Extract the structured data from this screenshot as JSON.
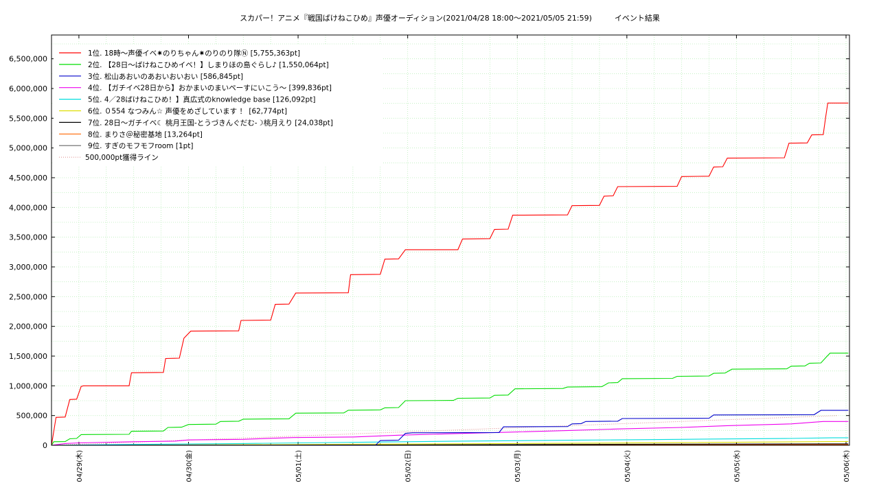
{
  "chart_data": {
    "type": "line",
    "title": "スカパー！アニメ『戦国ばけねこひめ』声優オーディション(2021/04/28 18:00〜2021/05/05 21:59)　　　イベント結果",
    "xlabel": "",
    "ylabel": "",
    "ylim": [
      0,
      6900000
    ],
    "yticks": [
      0,
      500000,
      1000000,
      1500000,
      2000000,
      2500000,
      3000000,
      3500000,
      4000000,
      4500000,
      5000000,
      5500000,
      6000000,
      6500000
    ],
    "ytick_labels": [
      "0",
      "500,000",
      "1,000,000",
      "1,500,000",
      "2,000,000",
      "2,500,000",
      "3,000,000",
      "3,500,000",
      "4,000,000",
      "4,500,000",
      "5,000,000",
      "5,500,000",
      "6,000,000",
      "6,500,000"
    ],
    "xlim": [
      "2021-04-28 18:00",
      "2021-05-06 00:45"
    ],
    "x_tick_labels": [
      "04/29(木)",
      "04/30(金)",
      "05/01(土)",
      "05/02(日)",
      "05/03(月)",
      "05/04(火)",
      "05/05(水)",
      "05/06(木)"
    ],
    "x_tick_dates": [
      "2021-04-29 00:00",
      "2021-04-30 00:00",
      "2021-05-01 00:00",
      "2021-05-02 00:00",
      "2021-05-03 00:00",
      "2021-05-04 00:00",
      "2021-05-05 00:00",
      "2021-05-06 00:00"
    ],
    "grid": true,
    "legend_position": "top-left",
    "series": [
      {
        "name": "1位. 18時〜声優イベ✷のりちゃん✷のりのり隊Ⓝ [5,755,363pt]",
        "color": "#ff0000",
        "points": [
          [
            "2021-04-28 18:00",
            0
          ],
          [
            "2021-04-28 19:00",
            470000
          ],
          [
            "2021-04-28 21:00",
            475000
          ],
          [
            "2021-04-28 22:00",
            770000
          ],
          [
            "2021-04-28 23:30",
            775000
          ],
          [
            "2021-04-29 00:30",
            990000
          ],
          [
            "2021-04-29 01:00",
            1000000
          ],
          [
            "2021-04-29 11:00",
            1000000
          ],
          [
            "2021-04-29 11:30",
            1220000
          ],
          [
            "2021-04-29 18:30",
            1225000
          ],
          [
            "2021-04-29 19:00",
            1460000
          ],
          [
            "2021-04-29 22:00",
            1465000
          ],
          [
            "2021-04-29 23:00",
            1800000
          ],
          [
            "2021-04-30 00:30",
            1920000
          ],
          [
            "2021-04-30 11:00",
            1925000
          ],
          [
            "2021-04-30 11:30",
            2100000
          ],
          [
            "2021-04-30 18:00",
            2105000
          ],
          [
            "2021-04-30 19:00",
            2370000
          ],
          [
            "2021-04-30 22:00",
            2375000
          ],
          [
            "2021-04-30 23:30",
            2560000
          ],
          [
            "2021-05-01 11:00",
            2565000
          ],
          [
            "2021-05-01 11:30",
            2870000
          ],
          [
            "2021-05-01 18:00",
            2875000
          ],
          [
            "2021-05-01 19:00",
            3130000
          ],
          [
            "2021-05-01 22:00",
            3135000
          ],
          [
            "2021-05-01 23:30",
            3290000
          ],
          [
            "2021-05-02 11:00",
            3290000
          ],
          [
            "2021-05-02 12:00",
            3470000
          ],
          [
            "2021-05-02 18:00",
            3475000
          ],
          [
            "2021-05-02 19:00",
            3630000
          ],
          [
            "2021-05-02 22:00",
            3635000
          ],
          [
            "2021-05-02 23:00",
            3870000
          ],
          [
            "2021-05-03 11:00",
            3875000
          ],
          [
            "2021-05-03 12:00",
            4030000
          ],
          [
            "2021-05-03 18:00",
            4035000
          ],
          [
            "2021-05-03 19:00",
            4190000
          ],
          [
            "2021-05-03 21:00",
            4195000
          ],
          [
            "2021-05-03 22:00",
            4350000
          ],
          [
            "2021-05-04 11:00",
            4355000
          ],
          [
            "2021-05-04 12:00",
            4520000
          ],
          [
            "2021-05-04 18:00",
            4525000
          ],
          [
            "2021-05-04 19:00",
            4680000
          ],
          [
            "2021-05-04 21:00",
            4685000
          ],
          [
            "2021-05-04 22:00",
            4830000
          ],
          [
            "2021-05-05 10:30",
            4835000
          ],
          [
            "2021-05-05 11:30",
            5080000
          ],
          [
            "2021-05-05 15:30",
            5085000
          ],
          [
            "2021-05-05 16:30",
            5220000
          ],
          [
            "2021-05-05 19:00",
            5225000
          ],
          [
            "2021-05-05 19:30",
            5500000
          ],
          [
            "2021-05-05 20:00",
            5755363
          ],
          [
            "2021-05-06 00:30",
            5755363
          ]
        ]
      },
      {
        "name": "2位. 【28日〜ばけねこひめイベ！】しまりほの島ぐらし♪ [1,550,064pt]",
        "color": "#00dd00",
        "points": [
          [
            "2021-04-28 18:00",
            0
          ],
          [
            "2021-04-28 18:30",
            60000
          ],
          [
            "2021-04-28 21:00",
            62000
          ],
          [
            "2021-04-28 22:00",
            110000
          ],
          [
            "2021-04-28 23:30",
            115000
          ],
          [
            "2021-04-29 00:30",
            180000
          ],
          [
            "2021-04-29 11:00",
            185000
          ],
          [
            "2021-04-29 11:30",
            235000
          ],
          [
            "2021-04-29 18:30",
            240000
          ],
          [
            "2021-04-29 19:30",
            300000
          ],
          [
            "2021-04-29 22:30",
            305000
          ],
          [
            "2021-04-30 00:00",
            350000
          ],
          [
            "2021-04-30 06:00",
            355000
          ],
          [
            "2021-04-30 07:00",
            400000
          ],
          [
            "2021-04-30 11:00",
            405000
          ],
          [
            "2021-04-30 12:00",
            440000
          ],
          [
            "2021-04-30 22:00",
            445000
          ],
          [
            "2021-04-30 23:30",
            540000
          ],
          [
            "2021-05-01 10:00",
            545000
          ],
          [
            "2021-05-01 11:00",
            590000
          ],
          [
            "2021-05-01 18:00",
            595000
          ],
          [
            "2021-05-01 19:00",
            630000
          ],
          [
            "2021-05-01 22:00",
            635000
          ],
          [
            "2021-05-01 23:30",
            750000
          ],
          [
            "2021-05-02 10:00",
            755000
          ],
          [
            "2021-05-02 11:00",
            790000
          ],
          [
            "2021-05-02 18:00",
            795000
          ],
          [
            "2021-05-02 19:00",
            840000
          ],
          [
            "2021-05-02 22:00",
            845000
          ],
          [
            "2021-05-02 23:30",
            950000
          ],
          [
            "2021-05-03 10:00",
            955000
          ],
          [
            "2021-05-03 11:00",
            980000
          ],
          [
            "2021-05-03 18:30",
            985000
          ],
          [
            "2021-05-03 20:00",
            1050000
          ],
          [
            "2021-05-03 22:00",
            1055000
          ],
          [
            "2021-05-03 23:00",
            1120000
          ],
          [
            "2021-05-04 10:00",
            1125000
          ],
          [
            "2021-05-04 11:00",
            1160000
          ],
          [
            "2021-05-04 18:00",
            1165000
          ],
          [
            "2021-05-04 19:00",
            1210000
          ],
          [
            "2021-05-04 21:30",
            1215000
          ],
          [
            "2021-05-04 23:00",
            1280000
          ],
          [
            "2021-05-05 11:00",
            1285000
          ],
          [
            "2021-05-05 12:00",
            1330000
          ],
          [
            "2021-05-05 15:00",
            1335000
          ],
          [
            "2021-05-05 16:00",
            1380000
          ],
          [
            "2021-05-05 18:30",
            1385000
          ],
          [
            "2021-05-05 19:30",
            1470000
          ],
          [
            "2021-05-05 20:30",
            1550064
          ],
          [
            "2021-05-06 00:30",
            1550064
          ]
        ]
      },
      {
        "name": "3位. 松山あおいのあおいおいおい [586,845pt]",
        "color": "#0000cc",
        "points": [
          [
            "2021-04-28 18:00",
            0
          ],
          [
            "2021-05-01 17:00",
            5000
          ],
          [
            "2021-05-01 18:00",
            80000
          ],
          [
            "2021-05-01 22:00",
            85000
          ],
          [
            "2021-05-01 23:30",
            200000
          ],
          [
            "2021-05-02 01:00",
            210000
          ],
          [
            "2021-05-02 20:00",
            215000
          ],
          [
            "2021-05-02 21:00",
            310000
          ],
          [
            "2021-05-03 11:00",
            315000
          ],
          [
            "2021-05-03 12:00",
            360000
          ],
          [
            "2021-05-03 14:00",
            365000
          ],
          [
            "2021-05-03 15:00",
            400000
          ],
          [
            "2021-05-03 22:00",
            405000
          ],
          [
            "2021-05-03 23:00",
            450000
          ],
          [
            "2021-05-04 18:00",
            455000
          ],
          [
            "2021-05-04 19:00",
            510000
          ],
          [
            "2021-05-05 17:00",
            515000
          ],
          [
            "2021-05-05 18:30",
            586845
          ],
          [
            "2021-05-06 00:30",
            586845
          ]
        ]
      },
      {
        "name": "4位. 【ガチイベ28日から】おかまいのまいペーすにいこう〜 [399,836pt]",
        "color": "#ee00ee",
        "points": [
          [
            "2021-04-28 18:00",
            0
          ],
          [
            "2021-04-28 21:00",
            30000
          ],
          [
            "2021-04-29 00:00",
            40000
          ],
          [
            "2021-04-29 12:00",
            60000
          ],
          [
            "2021-04-29 21:00",
            70000
          ],
          [
            "2021-04-30 00:00",
            90000
          ],
          [
            "2021-04-30 12:00",
            100000
          ],
          [
            "2021-04-30 23:00",
            130000
          ],
          [
            "2021-05-01 12:00",
            140000
          ],
          [
            "2021-05-01 22:00",
            170000
          ],
          [
            "2021-05-02 12:00",
            200000
          ],
          [
            "2021-05-02 22:00",
            220000
          ],
          [
            "2021-05-03 12:00",
            250000
          ],
          [
            "2021-05-03 22:00",
            275000
          ],
          [
            "2021-05-04 12:00",
            300000
          ],
          [
            "2021-05-04 22:00",
            330000
          ],
          [
            "2021-05-05 12:00",
            360000
          ],
          [
            "2021-05-05 19:00",
            399836
          ],
          [
            "2021-05-06 00:30",
            399836
          ]
        ]
      },
      {
        "name": "5位. 4／28ばけねこひめ！】真広式のknowledge base [126,092pt]",
        "color": "#00dddd",
        "points": [
          [
            "2021-04-28 18:00",
            0
          ],
          [
            "2021-04-29 12:00",
            15000
          ],
          [
            "2021-04-30 12:00",
            30000
          ],
          [
            "2021-05-01 12:00",
            50000
          ],
          [
            "2021-05-02 12:00",
            70000
          ],
          [
            "2021-05-03 12:00",
            85000
          ],
          [
            "2021-05-04 12:00",
            100000
          ],
          [
            "2021-05-05 12:00",
            115000
          ],
          [
            "2021-05-05 21:00",
            126092
          ],
          [
            "2021-05-06 00:30",
            126092
          ]
        ]
      },
      {
        "name": "6位. ０554 なつみん☆ 声優をめざしています ！ [62,774pt]",
        "color": "#dddd00",
        "points": [
          [
            "2021-04-28 18:00",
            0
          ],
          [
            "2021-04-30 12:00",
            10000
          ],
          [
            "2021-05-02 12:00",
            25000
          ],
          [
            "2021-05-04 12:00",
            45000
          ],
          [
            "2021-05-05 21:00",
            62774
          ],
          [
            "2021-05-06 00:30",
            62774
          ]
        ]
      },
      {
        "name": "7位. 28日〜ガチイベ☾ 桃月王国-とうづきんぐだむ-☽桃月えり [24,038pt]",
        "color": "#000000",
        "points": [
          [
            "2021-04-28 18:00",
            0
          ],
          [
            "2021-05-01 12:00",
            5000
          ],
          [
            "2021-05-03 12:00",
            15000
          ],
          [
            "2021-05-05 21:00",
            24038
          ],
          [
            "2021-05-06 00:30",
            24038
          ]
        ]
      },
      {
        "name": "8位. まりさ＠秘密基地 [13,264pt]",
        "color": "#ff6600",
        "points": [
          [
            "2021-04-28 18:00",
            0
          ],
          [
            "2021-05-02 12:00",
            6000
          ],
          [
            "2021-05-05 21:00",
            13264
          ],
          [
            "2021-05-06 00:30",
            13264
          ]
        ]
      },
      {
        "name": "9位. すぎのモフモフroom [1pt]",
        "color": "#666666",
        "points": [
          [
            "2021-04-28 18:00",
            0
          ],
          [
            "2021-05-06 00:30",
            1
          ]
        ]
      }
    ],
    "reference_line": {
      "name": "500,000pt獲得ライン",
      "color": "#dd8888",
      "points": [
        [
          "2021-04-28 18:00",
          0
        ],
        [
          "2021-05-05 21:59",
          500000
        ]
      ]
    }
  }
}
